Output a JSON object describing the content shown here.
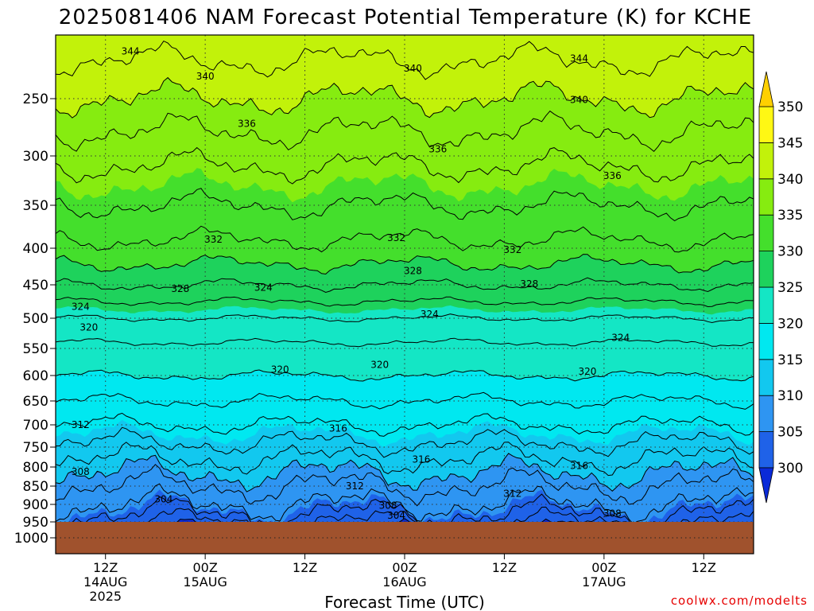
{
  "chart_data": {
    "type": "heatmap",
    "title": "2025081406 NAM Forecast Potential Temperature (K) for KCHE",
    "xlabel": "Forecast Time (UTC)",
    "ylabel": "",
    "credit": "coolwx.com/modelts",
    "y_axis": {
      "scale": "pressure (inverted)",
      "range": [
        1000,
        200
      ],
      "ticks": [
        250,
        300,
        350,
        400,
        450,
        500,
        550,
        600,
        650,
        700,
        750,
        800,
        850,
        900,
        950,
        1000
      ]
    },
    "x_axis": {
      "range_hours": [
        0,
        84
      ],
      "ticks": [
        {
          "hour": 6,
          "line1": "12Z",
          "line2": "14AUG",
          "line3": "2025"
        },
        {
          "hour": 18,
          "line1": "00Z",
          "line2": "15AUG",
          "line3": ""
        },
        {
          "hour": 30,
          "line1": "12Z",
          "line2": "",
          "line3": ""
        },
        {
          "hour": 42,
          "line1": "00Z",
          "line2": "16AUG",
          "line3": ""
        },
        {
          "hour": 54,
          "line1": "12Z",
          "line2": "",
          "line3": ""
        },
        {
          "hour": 66,
          "line1": "00Z",
          "line2": "17AUG",
          "line3": ""
        },
        {
          "hour": 78,
          "line1": "12Z",
          "line2": "",
          "line3": ""
        }
      ]
    },
    "colorbar": {
      "levels": [
        300,
        305,
        310,
        315,
        320,
        325,
        330,
        335,
        340,
        345,
        350
      ],
      "colors": [
        "#0a2ad8",
        "#1f62e8",
        "#2e95f2",
        "#12c8ef",
        "#00e8f0",
        "#14e6c5",
        "#1ed25c",
        "#44df2c",
        "#86ec10",
        "#c2f20a",
        "#fff814",
        "#ffd000"
      ],
      "extend": "both"
    },
    "ground_color": "#a0522d",
    "ground_pressure": 950,
    "isotherms_by_pressure": [
      {
        "p": 250,
        "theta": 340
      },
      {
        "p": 300,
        "theta": 336.5
      },
      {
        "p": 350,
        "theta": 334
      },
      {
        "p": 400,
        "theta": 331.5
      },
      {
        "p": 450,
        "theta": 328
      },
      {
        "p": 500,
        "theta": 324
      },
      {
        "p": 550,
        "theta": 321.5
      },
      {
        "p": 600,
        "theta": 320
      },
      {
        "p": 650,
        "theta": 318
      },
      {
        "p": 700,
        "theta": 316
      },
      {
        "p": 750,
        "theta": 313.5
      },
      {
        "p": 800,
        "theta": 311
      },
      {
        "p": 850,
        "theta": 308
      },
      {
        "p": 900,
        "theta": 306
      },
      {
        "p": 950,
        "theta": 302
      }
    ],
    "contour_labels": [
      {
        "text": "344",
        "hour": 9,
        "p": 215
      },
      {
        "text": "340",
        "hour": 18,
        "p": 233
      },
      {
        "text": "336",
        "hour": 23,
        "p": 272
      },
      {
        "text": "340",
        "hour": 43,
        "p": 227
      },
      {
        "text": "336",
        "hour": 46,
        "p": 294
      },
      {
        "text": "344",
        "hour": 63,
        "p": 220
      },
      {
        "text": "340",
        "hour": 63,
        "p": 251
      },
      {
        "text": "336",
        "hour": 67,
        "p": 320
      },
      {
        "text": "332",
        "hour": 19,
        "p": 390
      },
      {
        "text": "332",
        "hour": 41,
        "p": 388
      },
      {
        "text": "332",
        "hour": 55,
        "p": 402
      },
      {
        "text": "328",
        "hour": 15,
        "p": 456
      },
      {
        "text": "324",
        "hour": 25,
        "p": 454
      },
      {
        "text": "328",
        "hour": 43,
        "p": 431
      },
      {
        "text": "328",
        "hour": 57,
        "p": 449
      },
      {
        "text": "324",
        "hour": 3,
        "p": 483
      },
      {
        "text": "320",
        "hour": 4,
        "p": 515
      },
      {
        "text": "324",
        "hour": 45,
        "p": 494
      },
      {
        "text": "324",
        "hour": 68,
        "p": 532
      },
      {
        "text": "320",
        "hour": 27,
        "p": 589
      },
      {
        "text": "320",
        "hour": 39,
        "p": 580
      },
      {
        "text": "320",
        "hour": 64,
        "p": 593
      },
      {
        "text": "312",
        "hour": 3,
        "p": 700
      },
      {
        "text": "316",
        "hour": 34,
        "p": 708
      },
      {
        "text": "316",
        "hour": 44,
        "p": 781
      },
      {
        "text": "316",
        "hour": 63,
        "p": 797
      },
      {
        "text": "308",
        "hour": 3,
        "p": 813
      },
      {
        "text": "312",
        "hour": 36,
        "p": 850
      },
      {
        "text": "312",
        "hour": 55,
        "p": 871
      },
      {
        "text": "304",
        "hour": 13,
        "p": 886
      },
      {
        "text": "308",
        "hour": 40,
        "p": 903
      },
      {
        "text": "304",
        "hour": 41,
        "p": 932
      },
      {
        "text": "308",
        "hour": 67,
        "p": 926
      }
    ]
  }
}
